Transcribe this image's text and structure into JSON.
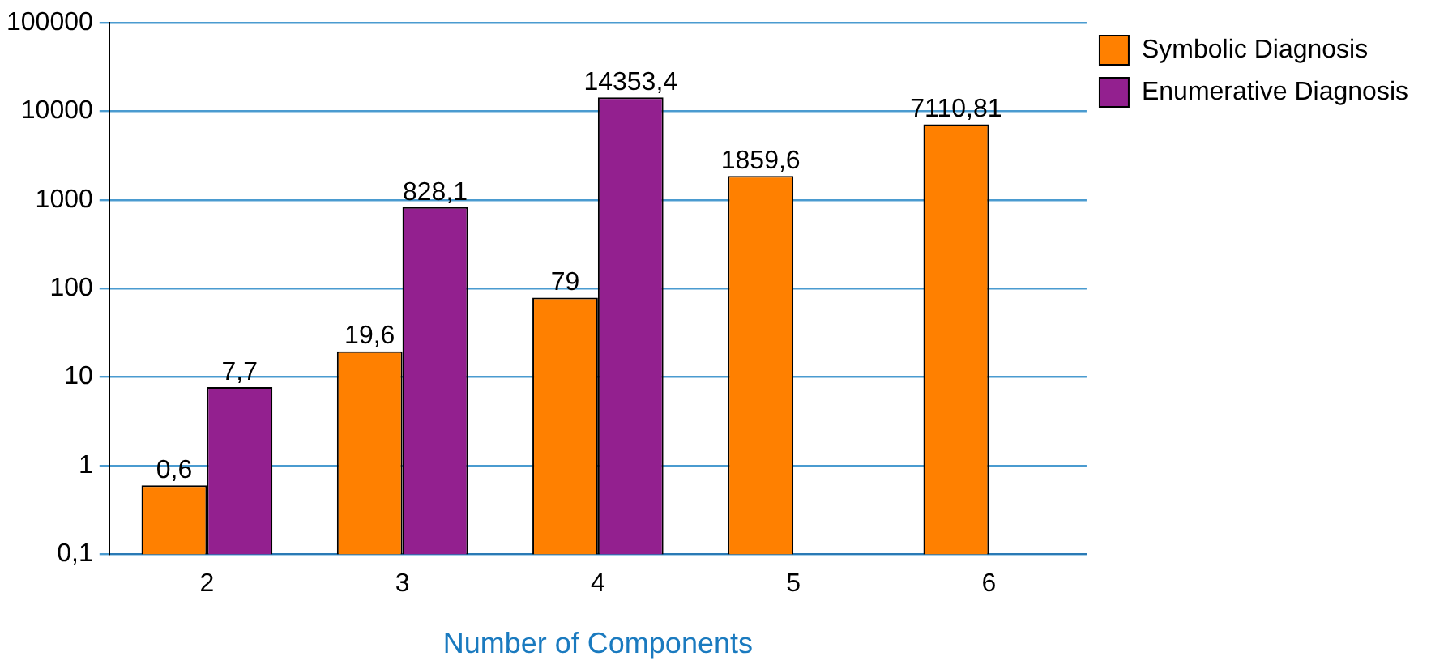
{
  "chart_data": {
    "type": "bar",
    "xlabel": "Number of Components",
    "categories": [
      "2",
      "3",
      "4",
      "5",
      "6"
    ],
    "series": [
      {
        "name": "Symbolic Diagnosis",
        "color": "#ff8000",
        "values": [
          0.6,
          19.6,
          79,
          1859.6,
          7110.81
        ],
        "value_labels": [
          "0,6",
          "19,6",
          "79",
          "1859,6",
          "7110,81"
        ]
      },
      {
        "name": "Enumerative Diagnosis",
        "color": "#93208f",
        "values": [
          7.7,
          828.1,
          14353.4,
          null,
          null
        ],
        "value_labels": [
          "7,7",
          "828,1",
          "14353,4",
          null,
          null
        ]
      }
    ],
    "log": true,
    "ylim": [
      0.1,
      100000
    ],
    "yticks": [
      {
        "value": 0.1,
        "label": "0,1"
      },
      1,
      10,
      100,
      1000,
      10000,
      100000
    ],
    "grid": "y",
    "legend": "top right"
  }
}
